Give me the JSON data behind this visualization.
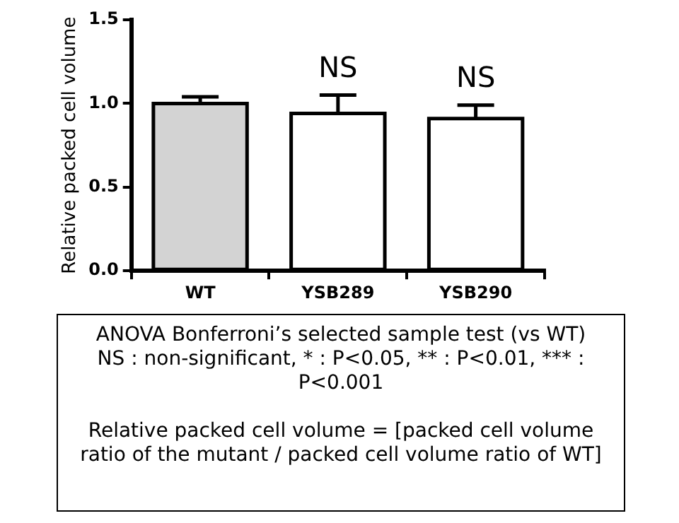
{
  "chart_data": {
    "type": "bar",
    "ylabel": "Relative packed cell volume",
    "categories": [
      "WT",
      "YSB289",
      "YSB290"
    ],
    "values": [
      1.0,
      0.94,
      0.91
    ],
    "colors": [
      "#d3d3d3",
      "#ffffff",
      "#ffffff"
    ],
    "errors": [
      [
        1.0,
        1.04
      ],
      [
        0.94,
        1.05
      ],
      [
        0.91,
        0.99
      ]
    ],
    "ylim": [
      0,
      1.5
    ],
    "yticks": [
      {
        "value": 0,
        "label": "0.0"
      },
      {
        "value": 0.5,
        "label": "0.5"
      },
      {
        "value": 1,
        "label": "1.0"
      },
      {
        "value": 1.5,
        "label": "1.5"
      }
    ],
    "grid": false,
    "legend": false,
    "annotations": [
      "NS",
      "NS",
      "ANOVA Bonferroni’s selected sample test (vs WT)",
      "NS : non-significant, * : P<0.05, ** : P<0.01, *** : P<0.001",
      "Relative packed cell volume = [packed cell volume ratio of the mutant / packed cell volume ratio of WT]"
    ]
  }
}
